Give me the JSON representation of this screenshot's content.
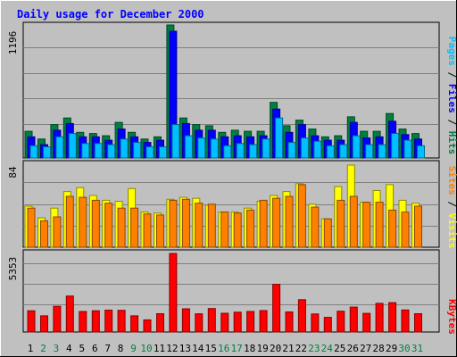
{
  "title": "Daily usage for December 2000",
  "colors": {
    "background": "#c0c0c0",
    "title": "#0000ff",
    "hits": "#008040",
    "files": "#0000ff",
    "pages": "#00c0ff",
    "visits": "#ffff00",
    "sites": "#ff8000",
    "kbytes": "#ff0000",
    "weekday_label": "#000000",
    "weekend_label": "#008040"
  },
  "chart_data": [
    {
      "type": "bar",
      "panel": "hits-files-pages",
      "ymax_label": "1196",
      "ylim": [
        0,
        1196
      ],
      "legend": [
        "Pages",
        "Files",
        "Hits"
      ],
      "categories": [
        "1",
        "2",
        "3",
        "4",
        "5",
        "6",
        "7",
        "8",
        "9",
        "10",
        "11",
        "12",
        "13",
        "14",
        "15",
        "16",
        "17",
        "18",
        "19",
        "20",
        "21",
        "22",
        "23",
        "24",
        "25",
        "26",
        "27",
        "28",
        "29",
        "30",
        "31"
      ],
      "series": [
        {
          "name": "Hits",
          "values": [
            240,
            170,
            300,
            360,
            230,
            220,
            200,
            320,
            230,
            170,
            190,
            1196,
            360,
            300,
            290,
            230,
            250,
            240,
            240,
            500,
            290,
            340,
            260,
            190,
            200,
            370,
            240,
            240,
            400,
            260,
            220
          ]
        },
        {
          "name": "Files",
          "values": [
            190,
            120,
            250,
            310,
            190,
            190,
            160,
            260,
            190,
            140,
            160,
            1140,
            310,
            250,
            250,
            190,
            200,
            190,
            200,
            440,
            230,
            300,
            200,
            160,
            160,
            320,
            180,
            190,
            330,
            210,
            170
          ]
        },
        {
          "name": "Pages",
          "values": [
            110,
            100,
            190,
            220,
            130,
            130,
            120,
            170,
            140,
            100,
            100,
            300,
            200,
            180,
            170,
            110,
            130,
            120,
            170,
            360,
            140,
            180,
            150,
            110,
            120,
            200,
            120,
            120,
            220,
            160,
            110
          ]
        }
      ]
    },
    {
      "type": "bar",
      "panel": "visits-sites",
      "ymax_label": "84",
      "ylim": [
        0,
        84
      ],
      "legend": [
        "Sites",
        "Visits"
      ],
      "categories": [
        "1",
        "2",
        "3",
        "4",
        "5",
        "6",
        "7",
        "8",
        "9",
        "10",
        "11",
        "12",
        "13",
        "14",
        "15",
        "16",
        "17",
        "18",
        "19",
        "20",
        "21",
        "22",
        "23",
        "24",
        "25",
        "26",
        "27",
        "28",
        "29",
        "30",
        "31"
      ],
      "series": [
        {
          "name": "Visits",
          "values": [
            42,
            30,
            40,
            57,
            61,
            53,
            48,
            47,
            60,
            36,
            35,
            49,
            51,
            50,
            43,
            36,
            36,
            40,
            47,
            53,
            57,
            65,
            44,
            29,
            62,
            84,
            46,
            58,
            64,
            48,
            45
          ]
        },
        {
          "name": "Sites",
          "values": [
            40,
            27,
            31,
            52,
            51,
            48,
            45,
            40,
            40,
            34,
            33,
            48,
            49,
            45,
            44,
            36,
            35,
            38,
            48,
            50,
            52,
            64,
            41,
            29,
            48,
            52,
            46,
            46,
            38,
            36,
            42
          ]
        }
      ]
    },
    {
      "type": "bar",
      "panel": "kbytes",
      "ymax_label": "5353",
      "ylim": [
        0,
        5353
      ],
      "legend": [
        "KBytes"
      ],
      "categories": [
        "1",
        "2",
        "3",
        "4",
        "5",
        "6",
        "7",
        "8",
        "9",
        "10",
        "11",
        "12",
        "13",
        "14",
        "15",
        "16",
        "17",
        "18",
        "19",
        "20",
        "21",
        "22",
        "23",
        "24",
        "25",
        "26",
        "27",
        "28",
        "29",
        "30",
        "31"
      ],
      "series": [
        {
          "name": "KBytes",
          "values": [
            1450,
            1100,
            1750,
            2450,
            1400,
            1450,
            1490,
            1480,
            1100,
            830,
            1250,
            5353,
            1580,
            1240,
            1600,
            1280,
            1350,
            1400,
            1460,
            3250,
            1370,
            2200,
            1230,
            1000,
            1420,
            1700,
            1270,
            1950,
            2000,
            1500,
            1250
          ]
        }
      ]
    }
  ]
}
